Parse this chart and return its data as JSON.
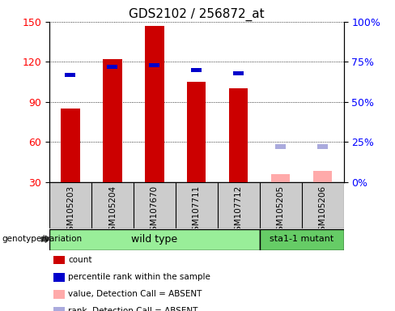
{
  "title": "GDS2102 / 256872_at",
  "samples": [
    "GSM105203",
    "GSM105204",
    "GSM107670",
    "GSM107711",
    "GSM107712",
    "GSM105205",
    "GSM105206"
  ],
  "groups": {
    "wild type": [
      0,
      1,
      2,
      3,
      4
    ],
    "sta1-1 mutant": [
      5,
      6
    ]
  },
  "count_values": [
    85,
    122,
    147,
    105,
    100,
    null,
    null
  ],
  "rank_values": [
    67,
    72,
    73,
    70,
    68,
    null,
    null
  ],
  "absent_value": [
    null,
    null,
    null,
    null,
    null,
    36,
    38
  ],
  "absent_rank": [
    null,
    null,
    null,
    null,
    null,
    22,
    22
  ],
  "ylim_left": [
    30,
    150
  ],
  "ylim_right": [
    0,
    100
  ],
  "yticks_left": [
    30,
    60,
    90,
    120,
    150
  ],
  "yticks_right": [
    0,
    25,
    50,
    75,
    100
  ],
  "ytick_labels_right": [
    "0%",
    "25%",
    "50%",
    "75%",
    "100%"
  ],
  "count_bar_width": 0.45,
  "rank_bar_width": 0.25,
  "count_color": "#cc0000",
  "rank_color": "#0000cc",
  "absent_value_color": "#ffaaaa",
  "absent_rank_color": "#aaaadd",
  "group_colors": {
    "wild type": "#99ee99",
    "sta1-1 mutant": "#66cc66"
  },
  "sample_bg_color": "#cccccc",
  "plot_bg_color": "#ffffff",
  "legend_items": [
    {
      "label": "count",
      "color": "#cc0000"
    },
    {
      "label": "percentile rank within the sample",
      "color": "#0000cc"
    },
    {
      "label": "value, Detection Call = ABSENT",
      "color": "#ffaaaa"
    },
    {
      "label": "rank, Detection Call = ABSENT",
      "color": "#aaaadd"
    }
  ]
}
